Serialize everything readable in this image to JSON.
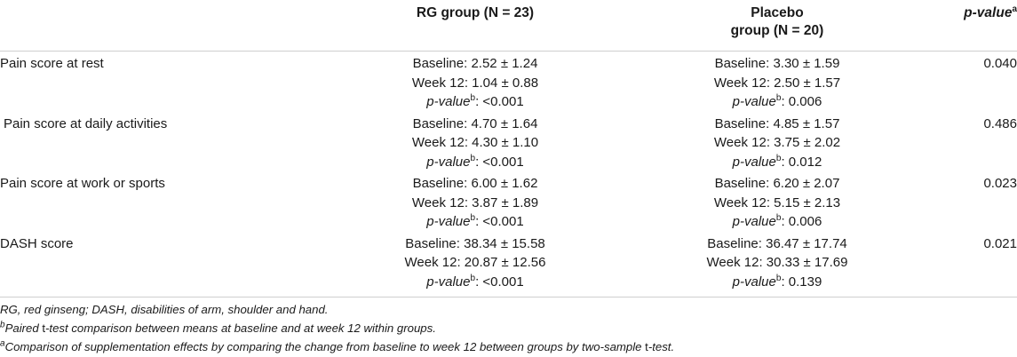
{
  "table": {
    "headers": {
      "label": "",
      "rg": "RG group (N = 23)",
      "placebo_line1": "Placebo",
      "placebo_line2": "group (N = 20)",
      "pvalue": "p-value",
      "pvalue_sup": "a"
    },
    "rows": [
      {
        "label": "Pain score at rest",
        "rg": {
          "baseline": "Baseline: 2.52 ± 1.24",
          "week12": "Week 12: 1.04 ± 0.88",
          "p_prefix": "p-value",
          "p_sup": "b",
          "p_value": ": <0.001"
        },
        "placebo": {
          "baseline": "Baseline: 3.30 ± 1.59",
          "week12": "Week 12: 2.50 ± 1.57",
          "p_prefix": "p-value",
          "p_sup": "b",
          "p_value": ": 0.006"
        },
        "pvalue": "0.040"
      },
      {
        "label": "Pain score at daily activities",
        "rg": {
          "baseline": "Baseline: 4.70 ± 1.64",
          "week12": "Week 12: 4.30 ± 1.10",
          "p_prefix": "p-value",
          "p_sup": "b",
          "p_value": ": <0.001"
        },
        "placebo": {
          "baseline": "Baseline: 4.85 ± 1.57",
          "week12": "Week 12: 3.75 ± 2.02",
          "p_prefix": "p-value",
          "p_sup": "b",
          "p_value": ": 0.012"
        },
        "pvalue": "0.486"
      },
      {
        "label": "Pain score at work or sports",
        "rg": {
          "baseline": "Baseline: 6.00 ± 1.62",
          "week12": "Week 12: 3.87 ± 1.89",
          "p_prefix": "p-value",
          "p_sup": "b",
          "p_value": ": <0.001"
        },
        "placebo": {
          "baseline": "Baseline: 6.20 ± 2.07",
          "week12": "Week 12: 5.15 ± 2.13",
          "p_prefix": "p-value",
          "p_sup": "b",
          "p_value": ": 0.006"
        },
        "pvalue": "0.023"
      },
      {
        "label": "DASH score",
        "rg": {
          "baseline": "Baseline: 38.34 ± 15.58",
          "week12": "Week 12: 20.87 ± 12.56",
          "p_prefix": "p-value",
          "p_sup": "b",
          "p_value": ": <0.001"
        },
        "placebo": {
          "baseline": "Baseline: 36.47 ± 17.74",
          "week12": "Week 12: 30.33 ± 17.69",
          "p_prefix": "p-value",
          "p_sup": "b",
          "p_value": ": 0.139"
        },
        "pvalue": "0.021"
      }
    ]
  },
  "notes": {
    "abbrev": "RG, red ginseng; DASH, disabilities of arm, shoulder and hand.",
    "note_b_sup": "b",
    "note_b_pre": "Paired ",
    "note_b_test": "t",
    "note_b_post": "-test comparison between means at baseline and at week 12 within groups.",
    "note_a_sup": "a",
    "note_a_pre": "Comparison of supplementation effects by comparing the change from baseline to week 12 between groups by two-sample ",
    "note_a_test": "t",
    "note_a_post": "-test."
  }
}
